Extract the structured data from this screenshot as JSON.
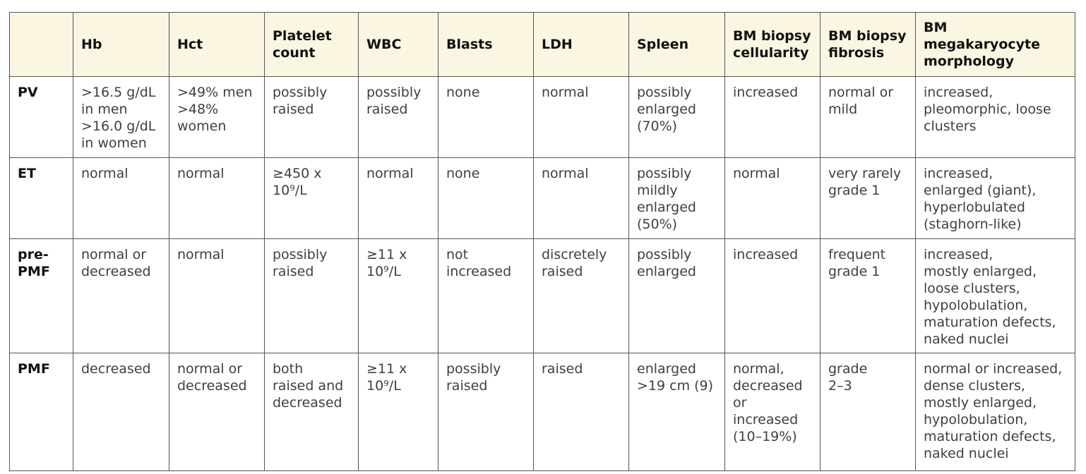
{
  "table": {
    "headers": [
      "",
      "Hb",
      "Hct",
      "Platelet\ncount",
      "WBC",
      "Blasts",
      "LDH",
      "Spleen",
      "BM biopsy\ncellularity",
      "BM biopsy\nfibrosis",
      "BM\nmegakaryocyte\nmorphology"
    ],
    "rows": [
      {
        "label": "PV",
        "cells": [
          ">16.5 g/dL\nin men\n>16.0 g/dL\nin women",
          ">49% men\n>48%\nwomen",
          "possibly\nraised",
          "possibly\nraised",
          "none",
          "normal",
          "possibly\nenlarged\n(70%)",
          "increased",
          "normal or\nmild",
          "increased,\npleomorphic, loose\nclusters"
        ]
      },
      {
        "label": "ET",
        "cells": [
          "normal",
          "normal",
          "≥450 x\n10⁹/L",
          "normal",
          "none",
          "normal",
          "possibly\nmildly\nenlarged\n(50%)",
          "normal",
          "very rarely\ngrade 1",
          "increased,\nenlarged (giant),\nhyperlobulated\n(staghorn-like)"
        ]
      },
      {
        "label": "pre-\nPMF",
        "cells": [
          "normal  or\ndecreased",
          "normal",
          "possibly\nraised",
          "≥11 x\n10⁹/L",
          "not\nincreased",
          "discretely\nraised",
          "possibly\nenlarged",
          "increased",
          "frequent\ngrade 1",
          "increased,\nmostly enlarged,\nloose clusters,\nhypolobulation,\nmaturation defects,\nnaked nuclei"
        ]
      },
      {
        "label": "PMF",
        "cells": [
          "decreased",
          "normal or\ndecreased",
          "both\nraised and\ndecreased",
          "≥11 x\n10⁹/L",
          "possibly\nraised",
          "raised",
          "enlarged\n>19 cm (9)",
          "normal,\ndecreased\nor\nincreased\n(10–19%)",
          "grade\n2–3",
          "normal or increased,\ndense clusters,\nmostly enlarged,\nhypolobulation,\nmaturation defects,\nnaked nuclei"
        ]
      }
    ]
  }
}
